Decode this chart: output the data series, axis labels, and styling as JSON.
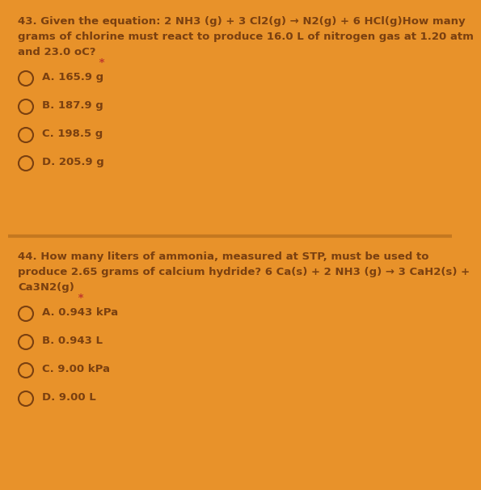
{
  "bg_color": "#E8922A",
  "divider_color": "#C47820",
  "text_color": "#7A4010",
  "asterisk_color": "#C0392B",
  "font_size": 9.5,
  "font_weight": "bold",
  "q43": {
    "question_lines": [
      "43. Given the equation: 2 NH3 (g) + 3 Cl2(g) → N2(g) + 6 HCl(g)How many",
      "grams of chlorine must react to produce 16.0 L of nitrogen gas at 1.20 atm",
      "and 23.0 oC?"
    ],
    "asterisk": " *",
    "options": [
      "A. 165.9 g",
      "B. 187.9 g",
      "C. 198.5 g",
      "D. 205.9 g"
    ]
  },
  "q44": {
    "question_lines": [
      "44. How many liters of ammonia, measured at STP, must be used to",
      "produce 2.65 grams of calcium hydride? 6 Ca(s) + 2 NH3 (g) → 3 CaH2(s) +",
      "Ca3N2(g)"
    ],
    "asterisk": " *",
    "options": [
      "A. 0.943 kPa",
      "B. 0.943 L",
      "C. 9.00 kPa",
      "D. 9.00 L"
    ]
  }
}
